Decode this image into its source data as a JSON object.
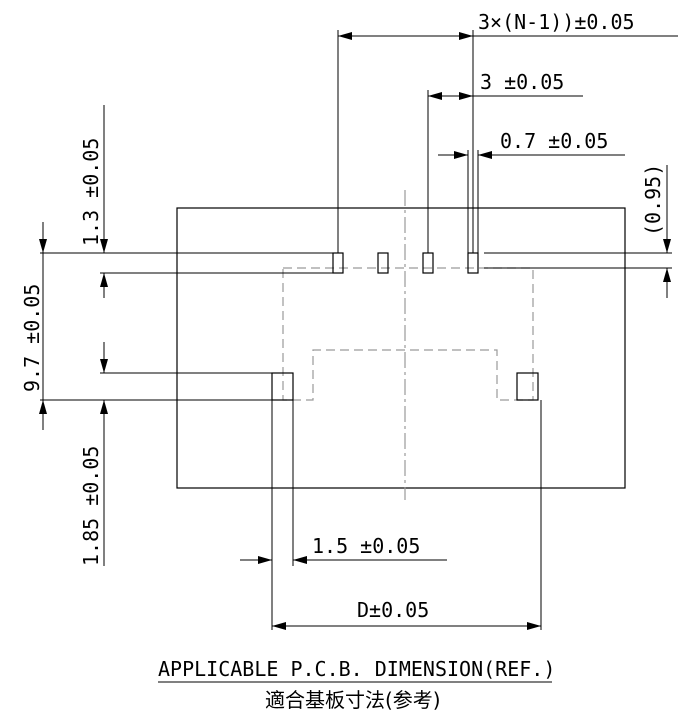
{
  "dimensions": {
    "pitch_total": "3×(N-1))±0.05",
    "pitch": "3 ±0.05",
    "pad_width": "0.7 ±0.05",
    "ref_095": "(0.95)",
    "v_13": "1.3 ±0.05",
    "v_97": "9.7 ±0.05",
    "v_185": "1.85 ±0.05",
    "mount_width": "1.5 ±0.05",
    "d_dim": "D±0.05"
  },
  "title": {
    "english": "APPLICABLE P.C.B. DIMENSION(REF.)",
    "japanese": "適合基板寸法(参考)"
  }
}
